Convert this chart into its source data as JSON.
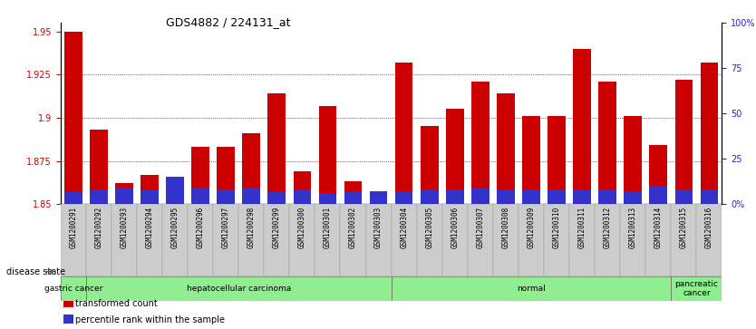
{
  "title": "GDS4882 / 224131_at",
  "samples": [
    "GSM1200291",
    "GSM1200292",
    "GSM1200293",
    "GSM1200294",
    "GSM1200295",
    "GSM1200296",
    "GSM1200297",
    "GSM1200298",
    "GSM1200299",
    "GSM1200300",
    "GSM1200301",
    "GSM1200302",
    "GSM1200303",
    "GSM1200304",
    "GSM1200305",
    "GSM1200306",
    "GSM1200307",
    "GSM1200308",
    "GSM1200309",
    "GSM1200310",
    "GSM1200311",
    "GSM1200312",
    "GSM1200313",
    "GSM1200314",
    "GSM1200315",
    "GSM1200316"
  ],
  "transformed_count": [
    1.95,
    1.893,
    1.862,
    1.867,
    1.856,
    1.883,
    1.883,
    1.891,
    1.914,
    1.869,
    1.907,
    1.863,
    1.856,
    1.932,
    1.895,
    1.905,
    1.921,
    1.914,
    1.901,
    1.901,
    1.94,
    1.921,
    1.901,
    1.884,
    1.922,
    1.932
  ],
  "percentile_rank_pct": [
    7,
    8,
    9,
    8,
    15,
    9,
    8,
    9,
    7,
    8,
    6,
    7,
    7,
    7,
    8,
    8,
    9,
    8,
    8,
    8,
    8,
    8,
    7,
    10,
    8,
    8
  ],
  "ylim_left": [
    1.85,
    1.955
  ],
  "ylim_right": [
    0,
    100
  ],
  "yticks_left": [
    1.85,
    1.875,
    1.9,
    1.925,
    1.95
  ],
  "ytick_labels_left": [
    "1.85",
    "1.875",
    "1.9",
    "1.925",
    "1.95"
  ],
  "yticks_right": [
    0,
    25,
    50,
    75,
    100
  ],
  "ytick_labels_right": [
    "0%",
    "25",
    "50",
    "75",
    "100%"
  ],
  "bar_color_red": "#CC0000",
  "bar_color_blue": "#3333CC",
  "base_value": 1.85,
  "background_color": "#ffffff",
  "tick_color_left": "#CC0000",
  "tick_color_right": "#2222CC",
  "disease_state_label": "disease state",
  "groups": [
    {
      "label": "gastric cancer",
      "start": 0,
      "end": 0
    },
    {
      "label": "hepatocellular carcinoma",
      "start": 1,
      "end": 12
    },
    {
      "label": "normal",
      "start": 13,
      "end": 23
    },
    {
      "label": "pancreatic\ncancer",
      "start": 24,
      "end": 25
    }
  ],
  "group_color": "#90EE90",
  "legend_items": [
    {
      "color": "#CC0000",
      "label": "transformed count"
    },
    {
      "color": "#3333CC",
      "label": "percentile rank within the sample"
    }
  ]
}
